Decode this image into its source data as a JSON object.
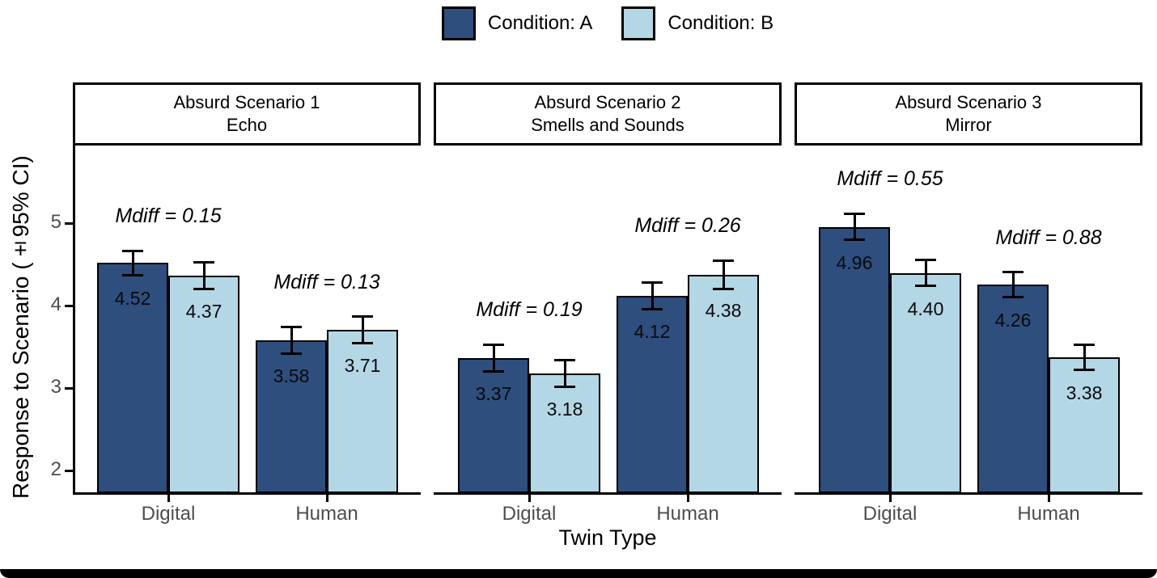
{
  "legend": {
    "items": [
      {
        "label": "Condition: A",
        "color": "#2E4E7E"
      },
      {
        "label": "Condition: B",
        "color": "#B4D7E6"
      }
    ]
  },
  "style": {
    "bar_border_color": "#000000",
    "axis_color": "#000000",
    "tick_label_color": "#4d4d4d"
  },
  "chart_data": {
    "type": "bar",
    "xlabel": "Twin Type",
    "ylabel": "Response to Scenario (±95% CI)",
    "categories": [
      "Digital",
      "Human"
    ],
    "yticks": [
      2,
      3,
      4,
      5
    ],
    "ylim": [
      1.73,
      5.94
    ],
    "grid": "off",
    "legend_position": "top-center",
    "error_bars": "±95% CI",
    "facets": [
      {
        "title": [
          "Absurd Scenario 1",
          "Echo"
        ],
        "series": [
          {
            "name": "Condition: A",
            "values": [
              4.52,
              3.58
            ],
            "ci": [
              0.15,
              0.16
            ]
          },
          {
            "name": "Condition: B",
            "values": [
              4.37,
              3.71
            ],
            "ci": [
              0.16,
              0.16
            ]
          }
        ],
        "annotations": [
          "Mdiff = 0.15",
          "Mdiff = 0.13"
        ]
      },
      {
        "title": [
          "Absurd Scenario 2",
          "Smells and Sounds"
        ],
        "series": [
          {
            "name": "Condition: A",
            "values": [
              3.37,
              4.12
            ],
            "ci": [
              0.16,
              0.16
            ]
          },
          {
            "name": "Condition: B",
            "values": [
              3.18,
              4.38
            ],
            "ci": [
              0.16,
              0.17
            ]
          }
        ],
        "annotations": [
          "Mdiff = 0.19",
          "Mdiff = 0.26"
        ]
      },
      {
        "title": [
          "Absurd Scenario 3",
          "Mirror"
        ],
        "series": [
          {
            "name": "Condition: A",
            "values": [
              4.96,
              4.26
            ],
            "ci": [
              0.16,
              0.15
            ]
          },
          {
            "name": "Condition: B",
            "values": [
              4.4,
              3.38
            ],
            "ci": [
              0.16,
              0.15
            ]
          }
        ],
        "annotations": [
          "Mdiff = 0.55",
          "Mdiff = 0.88"
        ]
      }
    ]
  }
}
